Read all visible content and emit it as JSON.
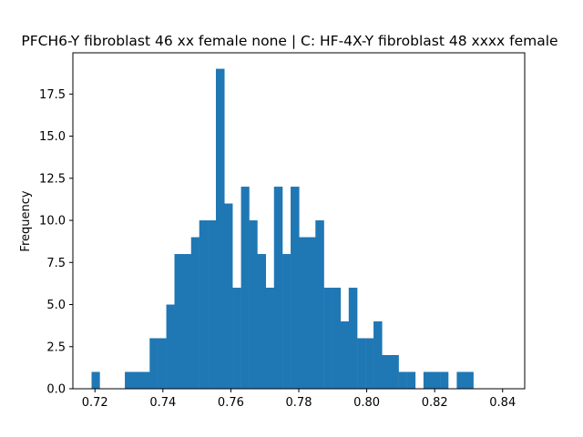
{
  "chart_data": {
    "type": "bar",
    "title": "PFCH6-Y fibroblast 46 xx female none | C: HF-4X-Y fibroblast 48 xxxx female",
    "xlabel": "",
    "ylabel": "Frequency",
    "xlim": [
      0.7135,
      0.8465
    ],
    "ylim": [
      0,
      19.95
    ],
    "xticks": [
      0.72,
      0.74,
      0.76,
      0.78,
      0.8,
      0.82,
      0.84
    ],
    "xtick_labels": [
      "0.72",
      "0.74",
      "0.76",
      "0.78",
      "0.80",
      "0.82",
      "0.84"
    ],
    "yticks": [
      0,
      2.5,
      5,
      7.5,
      10,
      12.5,
      15,
      17.5
    ],
    "ytick_labels": [
      "0.0",
      "2.5",
      "5.0",
      "7.5",
      "10.0",
      "12.5",
      "15.0",
      "17.5"
    ],
    "bin_edges": [
      0.719,
      0.7214,
      0.7239,
      0.7263,
      0.7288,
      0.7312,
      0.7336,
      0.7361,
      0.7385,
      0.741,
      0.7434,
      0.7459,
      0.7483,
      0.7507,
      0.7532,
      0.7556,
      0.7581,
      0.7605,
      0.763,
      0.7654,
      0.7678,
      0.7703,
      0.7727,
      0.7752,
      0.7776,
      0.7801,
      0.7825,
      0.7849,
      0.7874,
      0.7898,
      0.7923,
      0.7947,
      0.7972,
      0.7996,
      0.802,
      0.8045,
      0.8069,
      0.8094,
      0.8118,
      0.8143,
      0.8167,
      0.8191,
      0.8216,
      0.824,
      0.8265,
      0.8289,
      0.8314,
      0.8338,
      0.8362,
      0.8387,
      0.8411
    ],
    "values": [
      1,
      0,
      0,
      0,
      1,
      1,
      1,
      3,
      3,
      5,
      8,
      8,
      9,
      10,
      10,
      19,
      11,
      6,
      12,
      10,
      8,
      6,
      12,
      8,
      12,
      9,
      9,
      10,
      6,
      6,
      4,
      6,
      3,
      3,
      4,
      2,
      2,
      1,
      1,
      0,
      1,
      1,
      1,
      0,
      1,
      1,
      0,
      0,
      0,
      0
    ],
    "color": "#1f77b4",
    "grid": false
  }
}
